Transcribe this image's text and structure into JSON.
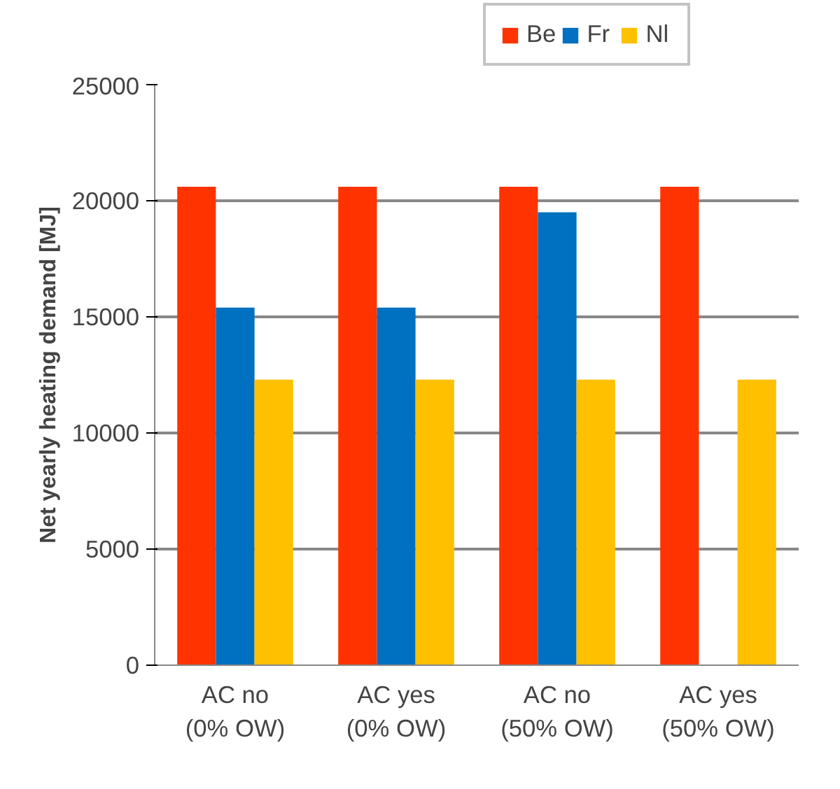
{
  "chart_data": {
    "type": "bar",
    "ylabel": "Net yearly heating demand [MJ]",
    "categories": [
      "AC no\n(0% OW)",
      "AC yes\n(0% OW)",
      "AC no\n(50% OW)",
      "AC yes\n(50% OW)"
    ],
    "series": [
      {
        "name": "Be",
        "color": "#ff3300",
        "values": [
          20600,
          20600,
          20600,
          20600
        ]
      },
      {
        "name": "Fr",
        "color": "#0070c0",
        "values": [
          15400,
          15400,
          19500,
          null
        ]
      },
      {
        "name": "Nl",
        "color": "#ffc000",
        "values": [
          12300,
          12300,
          12300,
          12300
        ]
      }
    ],
    "ylim": [
      0,
      25000
    ],
    "yticks": [
      0,
      5000,
      10000,
      15000,
      20000,
      25000
    ],
    "grid": "y",
    "legend": "top"
  }
}
